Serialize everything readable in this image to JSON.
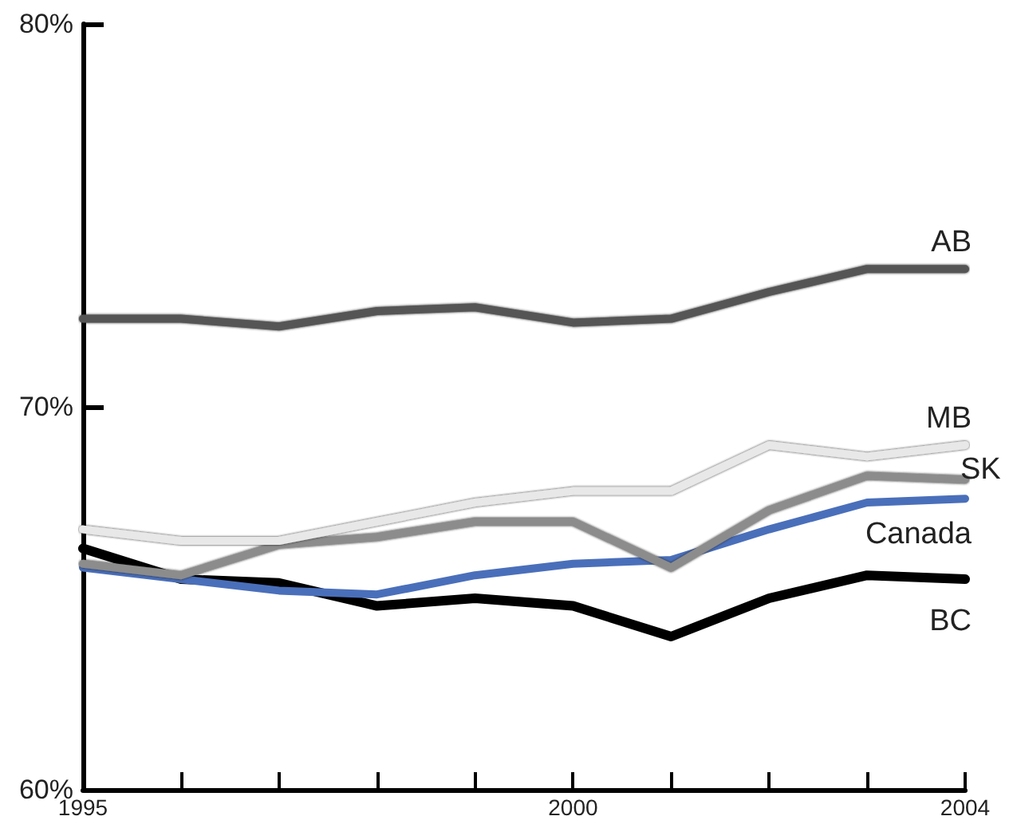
{
  "chart_data": {
    "type": "line",
    "x": [
      1995,
      1996,
      1997,
      1998,
      1999,
      2000,
      2001,
      2002,
      2003,
      2004
    ],
    "xlim": [
      1995,
      2004
    ],
    "xticks": [
      1995,
      {
        "value": 1996,
        "label": null
      },
      {
        "value": 1997,
        "label": null
      },
      {
        "value": 1998,
        "label": null
      },
      {
        "value": 1999,
        "label": null
      },
      2000,
      {
        "value": 2001,
        "label": null
      },
      {
        "value": 2002,
        "label": null
      },
      {
        "value": 2003,
        "label": null
      },
      2004
    ],
    "ylim": [
      60,
      80
    ],
    "yticks": [
      {
        "value": 60,
        "label": "60%"
      },
      {
        "value": 70,
        "label": "70%"
      },
      {
        "value": 80,
        "label": "80%"
      }
    ],
    "grid": false,
    "legend": false,
    "marker": "none",
    "line_style": "solid",
    "series": [
      {
        "name": "AB",
        "color": "#555555",
        "values": [
          72.3,
          72.3,
          72.1,
          72.5,
          72.6,
          72.2,
          72.3,
          73.0,
          73.6,
          73.6
        ]
      },
      {
        "name": "MB",
        "color": "#e8e8e8",
        "values": [
          66.8,
          66.5,
          66.5,
          67.0,
          67.5,
          67.8,
          67.8,
          69.0,
          68.7,
          69.0
        ]
      },
      {
        "name": "SK",
        "color": "#8c8c8c",
        "values": [
          65.9,
          65.6,
          66.4,
          66.6,
          67.0,
          67.0,
          65.8,
          67.3,
          68.2,
          68.1
        ]
      },
      {
        "name": "Canada",
        "color": "#4a6fba",
        "values": [
          65.8,
          65.5,
          65.2,
          65.1,
          65.6,
          65.9,
          66.0,
          66.8,
          67.5,
          67.6
        ]
      },
      {
        "name": "BC",
        "color": "#000000",
        "values": [
          66.3,
          65.5,
          65.4,
          64.8,
          65.0,
          64.8,
          64.0,
          65.0,
          65.6,
          65.5
        ]
      }
    ]
  }
}
